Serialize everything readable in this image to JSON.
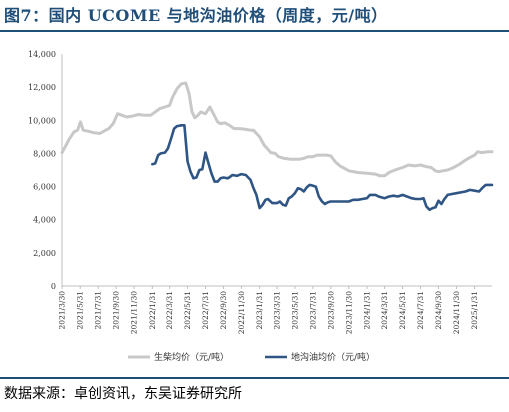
{
  "title": "图7：国内 UCOME 与地沟油价格（周度，元/吨）",
  "source": "数据来源：卓创资讯，东吴证券研究所",
  "chart_data": {
    "type": "line",
    "title": "图7：国内 UCOME 与地沟油价格（周度，元/吨）",
    "ylim": [
      0,
      14000
    ],
    "yticks": [
      "0",
      "2,000",
      "4,000",
      "6,000",
      "8,000",
      "10,000",
      "12,000",
      "14,000"
    ],
    "xlim": [
      "2021-03-30",
      "2025-03-31"
    ],
    "x_tick_labels": [
      "2021/3/30",
      "2021/5/31",
      "2021/7/31",
      "2021/9/30",
      "2021/11/30",
      "2022/1/31",
      "2022/3/31",
      "2022/5/31",
      "2022/7/31",
      "2022/9/30",
      "2022/11/30",
      "2023/1/31",
      "2023/3/31",
      "2023/5/31",
      "2023/7/31",
      "2023/9/30",
      "2023/11/30",
      "2024/1/31",
      "2024/3/31",
      "2024/5/31",
      "2024/7/31",
      "2024/9/30",
      "2024/11/30",
      "2025/1/31"
    ],
    "legend_position": "bottom",
    "series": [
      {
        "name": "生柴均价（元/吨）",
        "color": "#c8c8c8",
        "points": [
          [
            "2021-03-30",
            8050
          ],
          [
            "2021-04-10",
            8400
          ],
          [
            "2021-04-25",
            8900
          ],
          [
            "2021-05-10",
            9300
          ],
          [
            "2021-05-22",
            9400
          ],
          [
            "2021-06-01",
            9900
          ],
          [
            "2021-06-10",
            9400
          ],
          [
            "2021-06-25",
            9350
          ],
          [
            "2021-07-15",
            9250
          ],
          [
            "2021-08-05",
            9200
          ],
          [
            "2021-08-20",
            9350
          ],
          [
            "2021-09-05",
            9500
          ],
          [
            "2021-09-20",
            9800
          ],
          [
            "2021-10-05",
            10400
          ],
          [
            "2021-10-20",
            10300
          ],
          [
            "2021-11-05",
            10200
          ],
          [
            "2021-11-25",
            10250
          ],
          [
            "2021-12-15",
            10350
          ],
          [
            "2022-01-05",
            10300
          ],
          [
            "2022-01-25",
            10300
          ],
          [
            "2022-02-10",
            10500
          ],
          [
            "2022-02-25",
            10700
          ],
          [
            "2022-03-15",
            10800
          ],
          [
            "2022-03-31",
            10900
          ],
          [
            "2022-04-10",
            11400
          ],
          [
            "2022-04-25",
            11900
          ],
          [
            "2022-05-10",
            12200
          ],
          [
            "2022-05-25",
            12250
          ],
          [
            "2022-06-05",
            11600
          ],
          [
            "2022-06-15",
            10500
          ],
          [
            "2022-06-25",
            10150
          ],
          [
            "2022-07-05",
            10300
          ],
          [
            "2022-07-15",
            10500
          ],
          [
            "2022-07-31",
            10400
          ],
          [
            "2022-08-15",
            10800
          ],
          [
            "2022-08-31",
            10250
          ],
          [
            "2022-09-10",
            9900
          ],
          [
            "2022-09-20",
            9800
          ],
          [
            "2022-10-05",
            9850
          ],
          [
            "2022-10-20",
            9700
          ],
          [
            "2022-11-05",
            9500
          ],
          [
            "2022-11-25",
            9500
          ],
          [
            "2022-12-15",
            9450
          ],
          [
            "2022-12-31",
            9400
          ],
          [
            "2023-01-10",
            9400
          ],
          [
            "2023-01-31",
            9000
          ],
          [
            "2023-02-15",
            8500
          ],
          [
            "2023-02-28",
            8250
          ],
          [
            "2023-03-10",
            8050
          ],
          [
            "2023-03-25",
            8000
          ],
          [
            "2023-04-05",
            7800
          ],
          [
            "2023-04-25",
            7700
          ],
          [
            "2023-05-15",
            7650
          ],
          [
            "2023-05-31",
            7650
          ],
          [
            "2023-06-15",
            7650
          ],
          [
            "2023-06-30",
            7700
          ],
          [
            "2023-07-15",
            7800
          ],
          [
            "2023-07-31",
            7800
          ],
          [
            "2023-08-15",
            7900
          ],
          [
            "2023-08-31",
            7900
          ],
          [
            "2023-09-15",
            7900
          ],
          [
            "2023-09-30",
            7850
          ],
          [
            "2023-10-15",
            7500
          ],
          [
            "2023-10-31",
            7250
          ],
          [
            "2023-11-15",
            7100
          ],
          [
            "2023-11-30",
            6950
          ],
          [
            "2023-12-31",
            6850
          ],
          [
            "2024-01-31",
            6800
          ],
          [
            "2024-02-29",
            6750
          ],
          [
            "2024-03-15",
            6650
          ],
          [
            "2024-03-31",
            6650
          ],
          [
            "2024-04-15",
            6850
          ],
          [
            "2024-05-05",
            7000
          ],
          [
            "2024-05-31",
            7150
          ],
          [
            "2024-06-20",
            7300
          ],
          [
            "2024-07-10",
            7250
          ],
          [
            "2024-07-31",
            7300
          ],
          [
            "2024-08-20",
            7200
          ],
          [
            "2024-09-05",
            7150
          ],
          [
            "2024-09-20",
            6950
          ],
          [
            "2024-09-30",
            6900
          ],
          [
            "2024-10-15",
            6950
          ],
          [
            "2024-10-31",
            7000
          ],
          [
            "2024-11-15",
            7100
          ],
          [
            "2024-11-30",
            7250
          ],
          [
            "2024-12-15",
            7400
          ],
          [
            "2024-12-31",
            7600
          ],
          [
            "2025-01-15",
            7750
          ],
          [
            "2025-01-31",
            7900
          ],
          [
            "2025-02-10",
            8100
          ],
          [
            "2025-02-25",
            8050
          ],
          [
            "2025-03-15",
            8100
          ],
          [
            "2025-03-31",
            8100
          ]
        ]
      },
      {
        "name": "地沟油均价（元/吨）",
        "color": "#2e5583",
        "points": [
          [
            "2022-01-31",
            7350
          ],
          [
            "2022-02-10",
            7400
          ],
          [
            "2022-02-20",
            7900
          ],
          [
            "2022-03-01",
            8000
          ],
          [
            "2022-03-15",
            8050
          ],
          [
            "2022-03-25",
            8300
          ],
          [
            "2022-04-05",
            8900
          ],
          [
            "2022-04-15",
            9500
          ],
          [
            "2022-04-25",
            9650
          ],
          [
            "2022-05-10",
            9700
          ],
          [
            "2022-05-20",
            9700
          ],
          [
            "2022-05-31",
            7500
          ],
          [
            "2022-06-10",
            6900
          ],
          [
            "2022-06-20",
            6500
          ],
          [
            "2022-06-30",
            6550
          ],
          [
            "2022-07-10",
            7000
          ],
          [
            "2022-07-20",
            7050
          ],
          [
            "2022-07-31",
            8050
          ],
          [
            "2022-08-10",
            7400
          ],
          [
            "2022-08-20",
            6800
          ],
          [
            "2022-08-31",
            6300
          ],
          [
            "2022-09-10",
            6300
          ],
          [
            "2022-09-20",
            6500
          ],
          [
            "2022-09-30",
            6550
          ],
          [
            "2022-10-15",
            6500
          ],
          [
            "2022-10-31",
            6700
          ],
          [
            "2022-11-15",
            6650
          ],
          [
            "2022-11-30",
            6750
          ],
          [
            "2022-12-15",
            6700
          ],
          [
            "2022-12-31",
            6400
          ],
          [
            "2023-01-10",
            5900
          ],
          [
            "2023-01-20",
            5500
          ],
          [
            "2023-01-31",
            4700
          ],
          [
            "2023-02-10",
            4900
          ],
          [
            "2023-02-20",
            5200
          ],
          [
            "2023-02-28",
            5250
          ],
          [
            "2023-03-15",
            5000
          ],
          [
            "2023-03-31",
            5000
          ],
          [
            "2023-04-10",
            5100
          ],
          [
            "2023-04-20",
            4900
          ],
          [
            "2023-04-30",
            4850
          ],
          [
            "2023-05-10",
            5300
          ],
          [
            "2023-05-20",
            5400
          ],
          [
            "2023-05-31",
            5600
          ],
          [
            "2023-06-10",
            5900
          ],
          [
            "2023-06-20",
            5850
          ],
          [
            "2023-06-30",
            5700
          ],
          [
            "2023-07-10",
            5950
          ],
          [
            "2023-07-20",
            6100
          ],
          [
            "2023-07-31",
            6050
          ],
          [
            "2023-08-10",
            6000
          ],
          [
            "2023-08-20",
            5400
          ],
          [
            "2023-08-31",
            5100
          ],
          [
            "2023-09-10",
            4950
          ],
          [
            "2023-09-20",
            5050
          ],
          [
            "2023-09-30",
            5100
          ],
          [
            "2023-10-31",
            5100
          ],
          [
            "2023-11-15",
            5100
          ],
          [
            "2023-11-30",
            5100
          ],
          [
            "2023-12-15",
            5200
          ],
          [
            "2023-12-31",
            5200
          ],
          [
            "2024-01-15",
            5250
          ],
          [
            "2024-01-31",
            5300
          ],
          [
            "2024-02-10",
            5500
          ],
          [
            "2024-02-29",
            5500
          ],
          [
            "2024-03-10",
            5400
          ],
          [
            "2024-03-31",
            5300
          ],
          [
            "2024-04-15",
            5400
          ],
          [
            "2024-04-30",
            5450
          ],
          [
            "2024-05-15",
            5400
          ],
          [
            "2024-05-31",
            5500
          ],
          [
            "2024-06-15",
            5400
          ],
          [
            "2024-06-30",
            5300
          ],
          [
            "2024-07-15",
            5250
          ],
          [
            "2024-07-31",
            5250
          ],
          [
            "2024-08-10",
            5300
          ],
          [
            "2024-08-20",
            4800
          ],
          [
            "2024-08-31",
            4600
          ],
          [
            "2024-09-10",
            4700
          ],
          [
            "2024-09-20",
            4750
          ],
          [
            "2024-09-30",
            5150
          ],
          [
            "2024-10-10",
            4950
          ],
          [
            "2024-10-20",
            5250
          ],
          [
            "2024-10-31",
            5500
          ],
          [
            "2024-11-15",
            5550
          ],
          [
            "2024-11-30",
            5600
          ],
          [
            "2024-12-15",
            5650
          ],
          [
            "2024-12-31",
            5700
          ],
          [
            "2025-01-15",
            5800
          ],
          [
            "2025-01-31",
            5750
          ],
          [
            "2025-02-15",
            5700
          ],
          [
            "2025-02-28",
            5950
          ],
          [
            "2025-03-10",
            6100
          ],
          [
            "2025-03-31",
            6100
          ]
        ]
      }
    ]
  }
}
